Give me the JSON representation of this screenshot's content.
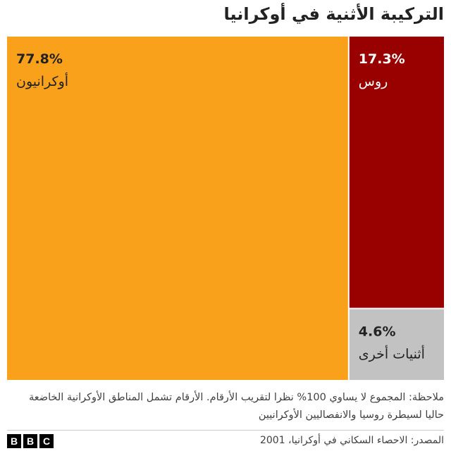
{
  "chart_data": {
    "type": "treemap",
    "title": "التركيبة الأثنية في أوكرانيا",
    "categories": [
      "أوكرانيون",
      "روس",
      "أثنيات أخرى"
    ],
    "values": [
      77.8,
      17.3,
      4.6
    ],
    "value_labels": [
      "77.8%",
      "17.3%",
      "4.6%"
    ],
    "colors": [
      "#f9a11b",
      "#990000",
      "#c2c2c2"
    ],
    "label_colors": [
      "#222222",
      "#ffffff",
      "#222222"
    ],
    "note": "ملاحظة: المجموع لا يساوي 100% نظرا لتقريب الأرقام. الأرقام تشمل المناطق الأوكرانية الخاضعة حاليا لسيطرة روسيا والانفصاليين الأوكرانيين",
    "source": "المصدر: الاحصاء السكاني في أوكرانيا، 2001",
    "logo": [
      "B",
      "B",
      "C"
    ]
  }
}
